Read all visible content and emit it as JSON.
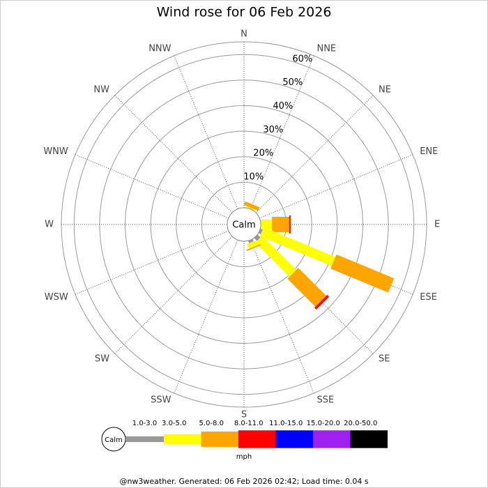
{
  "chart_data": {
    "type": "windrose",
    "title": "Wind rose for 06 Feb 2026",
    "calm_label": "Calm",
    "unit_label": "mph",
    "footer": "@nw3weather. Generated: 06 Feb 2026 02:42; Load time: 0.04 s",
    "categories": [
      "N",
      "NNE",
      "NE",
      "ENE",
      "E",
      "ESE",
      "SE",
      "SSE",
      "S",
      "SSW",
      "SW",
      "WSW",
      "W",
      "WNW",
      "NW",
      "NNW"
    ],
    "rlim": [
      0,
      65
    ],
    "rticks": [
      {
        "value": 10,
        "label": "10%"
      },
      {
        "value": 20,
        "label": "20%"
      },
      {
        "value": 30,
        "label": "30%"
      },
      {
        "value": 40,
        "label": "40%"
      },
      {
        "value": 50,
        "label": "50%"
      },
      {
        "value": 60,
        "label": "60%"
      }
    ],
    "series": [
      {
        "name": "1.0-3.0",
        "color": "#999999",
        "values": [
          0,
          0,
          0,
          0,
          0,
          1,
          1.6,
          1,
          0,
          0,
          0,
          0,
          0,
          0,
          0,
          0
        ]
      },
      {
        "name": "3.0-5.0",
        "color": "#ffff00",
        "values": [
          0,
          0.5,
          0,
          0,
          4.4,
          30.4,
          18.9,
          2,
          0,
          0,
          0,
          0,
          0,
          0,
          0,
          0
        ]
      },
      {
        "name": "5.0-8.0",
        "color": "#ffa500",
        "values": [
          0,
          1.5,
          0,
          0,
          6.8,
          24.4,
          15.5,
          0.5,
          0,
          0,
          0,
          0,
          0,
          0,
          0,
          0
        ]
      },
      {
        "name": "8.0-11.0",
        "color": "#ff0000",
        "values": [
          0,
          0,
          0,
          0,
          0.5,
          0,
          1,
          0,
          0,
          0,
          0,
          0,
          0,
          0,
          0,
          0
        ]
      },
      {
        "name": "11.0-15.0",
        "color": "#0000ff",
        "values": [
          0,
          0,
          0,
          0,
          0,
          0,
          0,
          0,
          0,
          0,
          0,
          0,
          0,
          0,
          0,
          0
        ]
      },
      {
        "name": "15.0-20.0",
        "color": "#a020f0",
        "values": [
          0,
          0,
          0,
          0,
          0,
          0,
          0,
          0,
          0,
          0,
          0,
          0,
          0,
          0,
          0,
          0
        ]
      },
      {
        "name": "20.0-50.0",
        "color": "#000000",
        "values": [
          0,
          0,
          0,
          0,
          0,
          0,
          0,
          0,
          0,
          0,
          0,
          0,
          0,
          0,
          0,
          0
        ]
      }
    ]
  }
}
